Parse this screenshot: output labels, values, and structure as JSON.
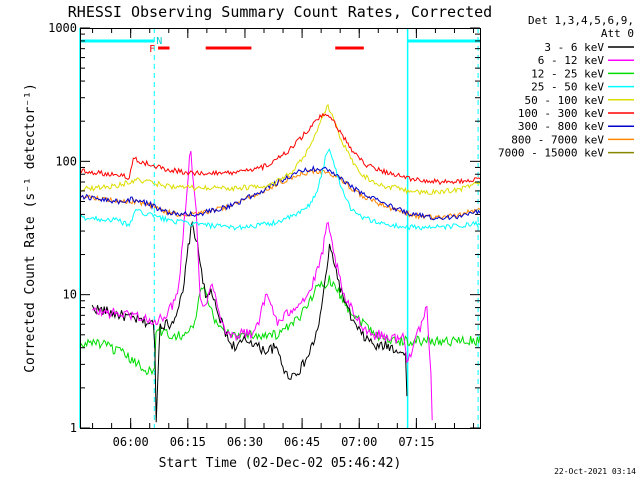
{
  "chart_data": {
    "type": "line",
    "title": "RHESSI Observing Summary Count Rates, Corrected",
    "xlabel": "Start Time (02-Dec-02 05:46:42)",
    "ylabel": "Corrected Count Rate (s⁻¹ detector⁻¹)",
    "yscale": "log",
    "ylim": [
      1,
      1000
    ],
    "xlim_minutes_after_start": [
      0,
      105
    ],
    "y_ticks": [
      {
        "v": 1,
        "label": "1"
      },
      {
        "v": 10,
        "label": "10"
      },
      {
        "v": 100,
        "label": "100"
      },
      {
        "v": 1000,
        "label": "1000"
      }
    ],
    "x_ticks": [
      {
        "t": 13.3,
        "label": "06:00"
      },
      {
        "t": 28.3,
        "label": "06:15"
      },
      {
        "t": 43.3,
        "label": "06:30"
      },
      {
        "t": 58.3,
        "label": "06:45"
      },
      {
        "t": 73.3,
        "label": "07:00"
      },
      {
        "t": 88.3,
        "label": "07:15"
      }
    ],
    "legend": {
      "header_line1": "Det 1,3,4,5,6,9,",
      "header_line2": "Att 0",
      "placement": "right-outside"
    },
    "annotations": {
      "night_marker": "N",
      "flare_marker": "F",
      "night_bars": [
        [
          0,
          19.5
        ],
        [
          86,
          105
        ]
      ],
      "flare_bars": [
        [
          20.5,
          23.5
        ],
        [
          33,
          45
        ],
        [
          67,
          74.5
        ]
      ],
      "solid_verticals": [
        0,
        86
      ],
      "dashed_verticals": [
        19.5,
        104.5
      ]
    },
    "series": [
      {
        "name": "3 - 6 keV",
        "color": "#000000",
        "t": [
          3.2,
          19.5,
          20,
          21,
          24,
          27,
          28.5,
          29.5,
          30.5,
          32,
          33,
          34.5,
          36,
          37.5,
          39,
          41,
          43,
          45,
          47,
          49,
          51,
          52.5,
          54,
          56,
          58,
          60,
          62,
          63.5,
          64.5,
          65.5,
          66.5,
          68,
          70,
          72,
          74,
          76,
          78,
          80,
          82,
          84,
          85.5,
          86
        ],
        "v": [
          8,
          6,
          1.2,
          6,
          6,
          10,
          24,
          34,
          26,
          15,
          9,
          11,
          7,
          6,
          4.5,
          4,
          4.5,
          4.5,
          4,
          3.8,
          4,
          3.5,
          2.5,
          2.5,
          2.8,
          3.5,
          5,
          8,
          14,
          22,
          19,
          12,
          8,
          6,
          5,
          4.5,
          4,
          4.2,
          4,
          3.8,
          3.5,
          1
        ]
      },
      {
        "name": "6 - 12 keV",
        "color": "#ff00ff",
        "t": [
          3.2,
          15,
          20,
          22,
          24,
          26,
          27.5,
          29,
          30.5,
          31.5,
          33,
          34.5,
          36,
          37.5,
          39,
          41,
          43,
          45,
          47,
          49,
          50.5,
          52,
          54,
          56,
          58,
          60,
          62,
          63.5,
          65,
          66,
          67.5,
          69,
          71,
          73,
          75,
          77,
          79,
          81,
          83,
          85,
          86,
          88,
          90,
          91,
          92,
          92.5
        ],
        "v": [
          7.5,
          7,
          6,
          7,
          8,
          12,
          40,
          130,
          40,
          10,
          8,
          12,
          9,
          6,
          5,
          5,
          5.2,
          5,
          6.5,
          10,
          8,
          6,
          7,
          8,
          9,
          10,
          14,
          20,
          34,
          25,
          16,
          10,
          8,
          6.5,
          5.5,
          5,
          5,
          4.8,
          4.7,
          4.8,
          3,
          5,
          6,
          8,
          3,
          1
        ]
      },
      {
        "name": "12 - 25 keV",
        "color": "#00dd00",
        "t": [
          0,
          3,
          8,
          12,
          15,
          18,
          19.5,
          20,
          24,
          28,
          30,
          32,
          34,
          36,
          40,
          44,
          48,
          52,
          56,
          58,
          60,
          62,
          64,
          65.5,
          67,
          69,
          72,
          75,
          78,
          82,
          86,
          90,
          95,
          100,
          105
        ],
        "v": [
          4,
          4.5,
          4,
          3.5,
          3,
          2.7,
          2.6,
          5.5,
          5,
          5,
          6,
          12,
          8,
          6,
          5,
          5,
          5,
          5,
          6,
          7,
          9,
          11,
          12,
          13,
          12,
          9,
          7,
          6,
          5,
          4.5,
          4.5,
          4.5,
          4.5,
          4.5,
          4.5
        ]
      },
      {
        "name": "25 - 50 keV",
        "color": "#00ffff",
        "t": [
          0,
          5,
          10,
          13,
          13.5,
          14.5,
          15,
          18,
          22,
          26,
          30,
          34,
          38,
          42,
          46,
          50,
          54,
          57,
          60,
          62,
          63.5,
          64.5,
          65.5,
          66.5,
          67.5,
          69,
          71,
          74,
          78,
          82,
          86,
          90,
          95,
          100,
          105
        ],
        "v": [
          38,
          37,
          36,
          33,
          35,
          45,
          42,
          40,
          37,
          35,
          34,
          33,
          32,
          32,
          33,
          34,
          37,
          40,
          46,
          58,
          80,
          110,
          120,
          100,
          80,
          60,
          45,
          38,
          35,
          33,
          32,
          32,
          32,
          33,
          34
        ]
      },
      {
        "name": "50 - 100 keV",
        "color": "#dddd00",
        "t": [
          0,
          3,
          6,
          10,
          13,
          15,
          18,
          22,
          26,
          30,
          35,
          40,
          45,
          50,
          53,
          56,
          59,
          61,
          63,
          65,
          66.5,
          68,
          70,
          72,
          74,
          77,
          80,
          84,
          86,
          90,
          95,
          100,
          105
        ],
        "v": [
          62,
          63,
          64,
          66,
          70,
          72,
          70,
          66,
          64,
          63,
          63,
          63,
          64,
          67,
          73,
          85,
          110,
          140,
          190,
          260,
          210,
          160,
          120,
          95,
          80,
          70,
          65,
          63,
          60,
          58,
          59,
          62,
          70
        ]
      },
      {
        "name": "100 - 300 keV",
        "color": "#ff0000",
        "t": [
          0,
          4,
          8,
          12,
          13,
          14,
          18,
          22,
          26,
          30,
          35,
          40,
          45,
          50,
          54,
          58,
          61,
          63,
          65,
          66.5,
          68,
          70,
          72,
          75,
          78,
          82,
          86,
          90,
          95,
          100,
          105
        ],
        "v": [
          85,
          83,
          80,
          78,
          75,
          105,
          95,
          88,
          84,
          82,
          81,
          82,
          85,
          95,
          115,
          150,
          185,
          215,
          220,
          200,
          170,
          140,
          115,
          95,
          88,
          80,
          75,
          72,
          70,
          70,
          75
        ]
      },
      {
        "name": "300 - 800 keV",
        "color": "#0000cc",
        "t": [
          0,
          5,
          10,
          14,
          18,
          22,
          26,
          30,
          34,
          38,
          42,
          46,
          50,
          54,
          58,
          62,
          65,
          67,
          69,
          72,
          76,
          80,
          84,
          88,
          92,
          96,
          100,
          105
        ],
        "v": [
          55,
          52,
          50,
          52,
          48,
          42,
          40,
          40,
          42,
          45,
          50,
          57,
          65,
          75,
          85,
          88,
          86,
          80,
          72,
          62,
          55,
          48,
          43,
          40,
          38,
          38,
          39,
          42
        ]
      },
      {
        "name": "800 - 7000 keV",
        "color": "#ff8800",
        "t": [
          0,
          5,
          10,
          14,
          18,
          22,
          26,
          30,
          34,
          38,
          42,
          46,
          50,
          54,
          58,
          62,
          65,
          67,
          69,
          72,
          76,
          80,
          84,
          88,
          92,
          96,
          100,
          105
        ],
        "v": [
          55,
          53,
          50,
          50,
          47,
          42,
          40,
          40,
          42,
          45,
          50,
          56,
          64,
          72,
          80,
          84,
          82,
          78,
          70,
          60,
          52,
          46,
          42,
          39,
          38,
          38,
          40,
          44
        ]
      },
      {
        "name": "7000 - 15000 keV",
        "color": "#888800",
        "t": [
          0,
          3,
          6,
          9,
          12,
          15,
          18,
          21,
          24,
          27,
          30,
          33,
          36,
          39,
          42,
          45,
          48,
          51,
          54,
          57,
          60,
          63,
          66,
          69,
          72,
          75,
          78,
          81,
          84,
          87,
          90,
          93,
          96,
          99,
          102,
          105
        ],
        "v": [
          8,
          9,
          9,
          8.5,
          9,
          8,
          7,
          6,
          5,
          4.5,
          4.5,
          4.2,
          4,
          4,
          4,
          4.5,
          5.5,
          7,
          9,
          11.5,
          14,
          15,
          15,
          13,
          11,
          9,
          7,
          6,
          5,
          4.5,
          4.5,
          4.5,
          4.5,
          4.5,
          4.5,
          4.5
        ]
      }
    ]
  },
  "footer": {
    "timestamp": "22-Oct-2021 03:14"
  }
}
